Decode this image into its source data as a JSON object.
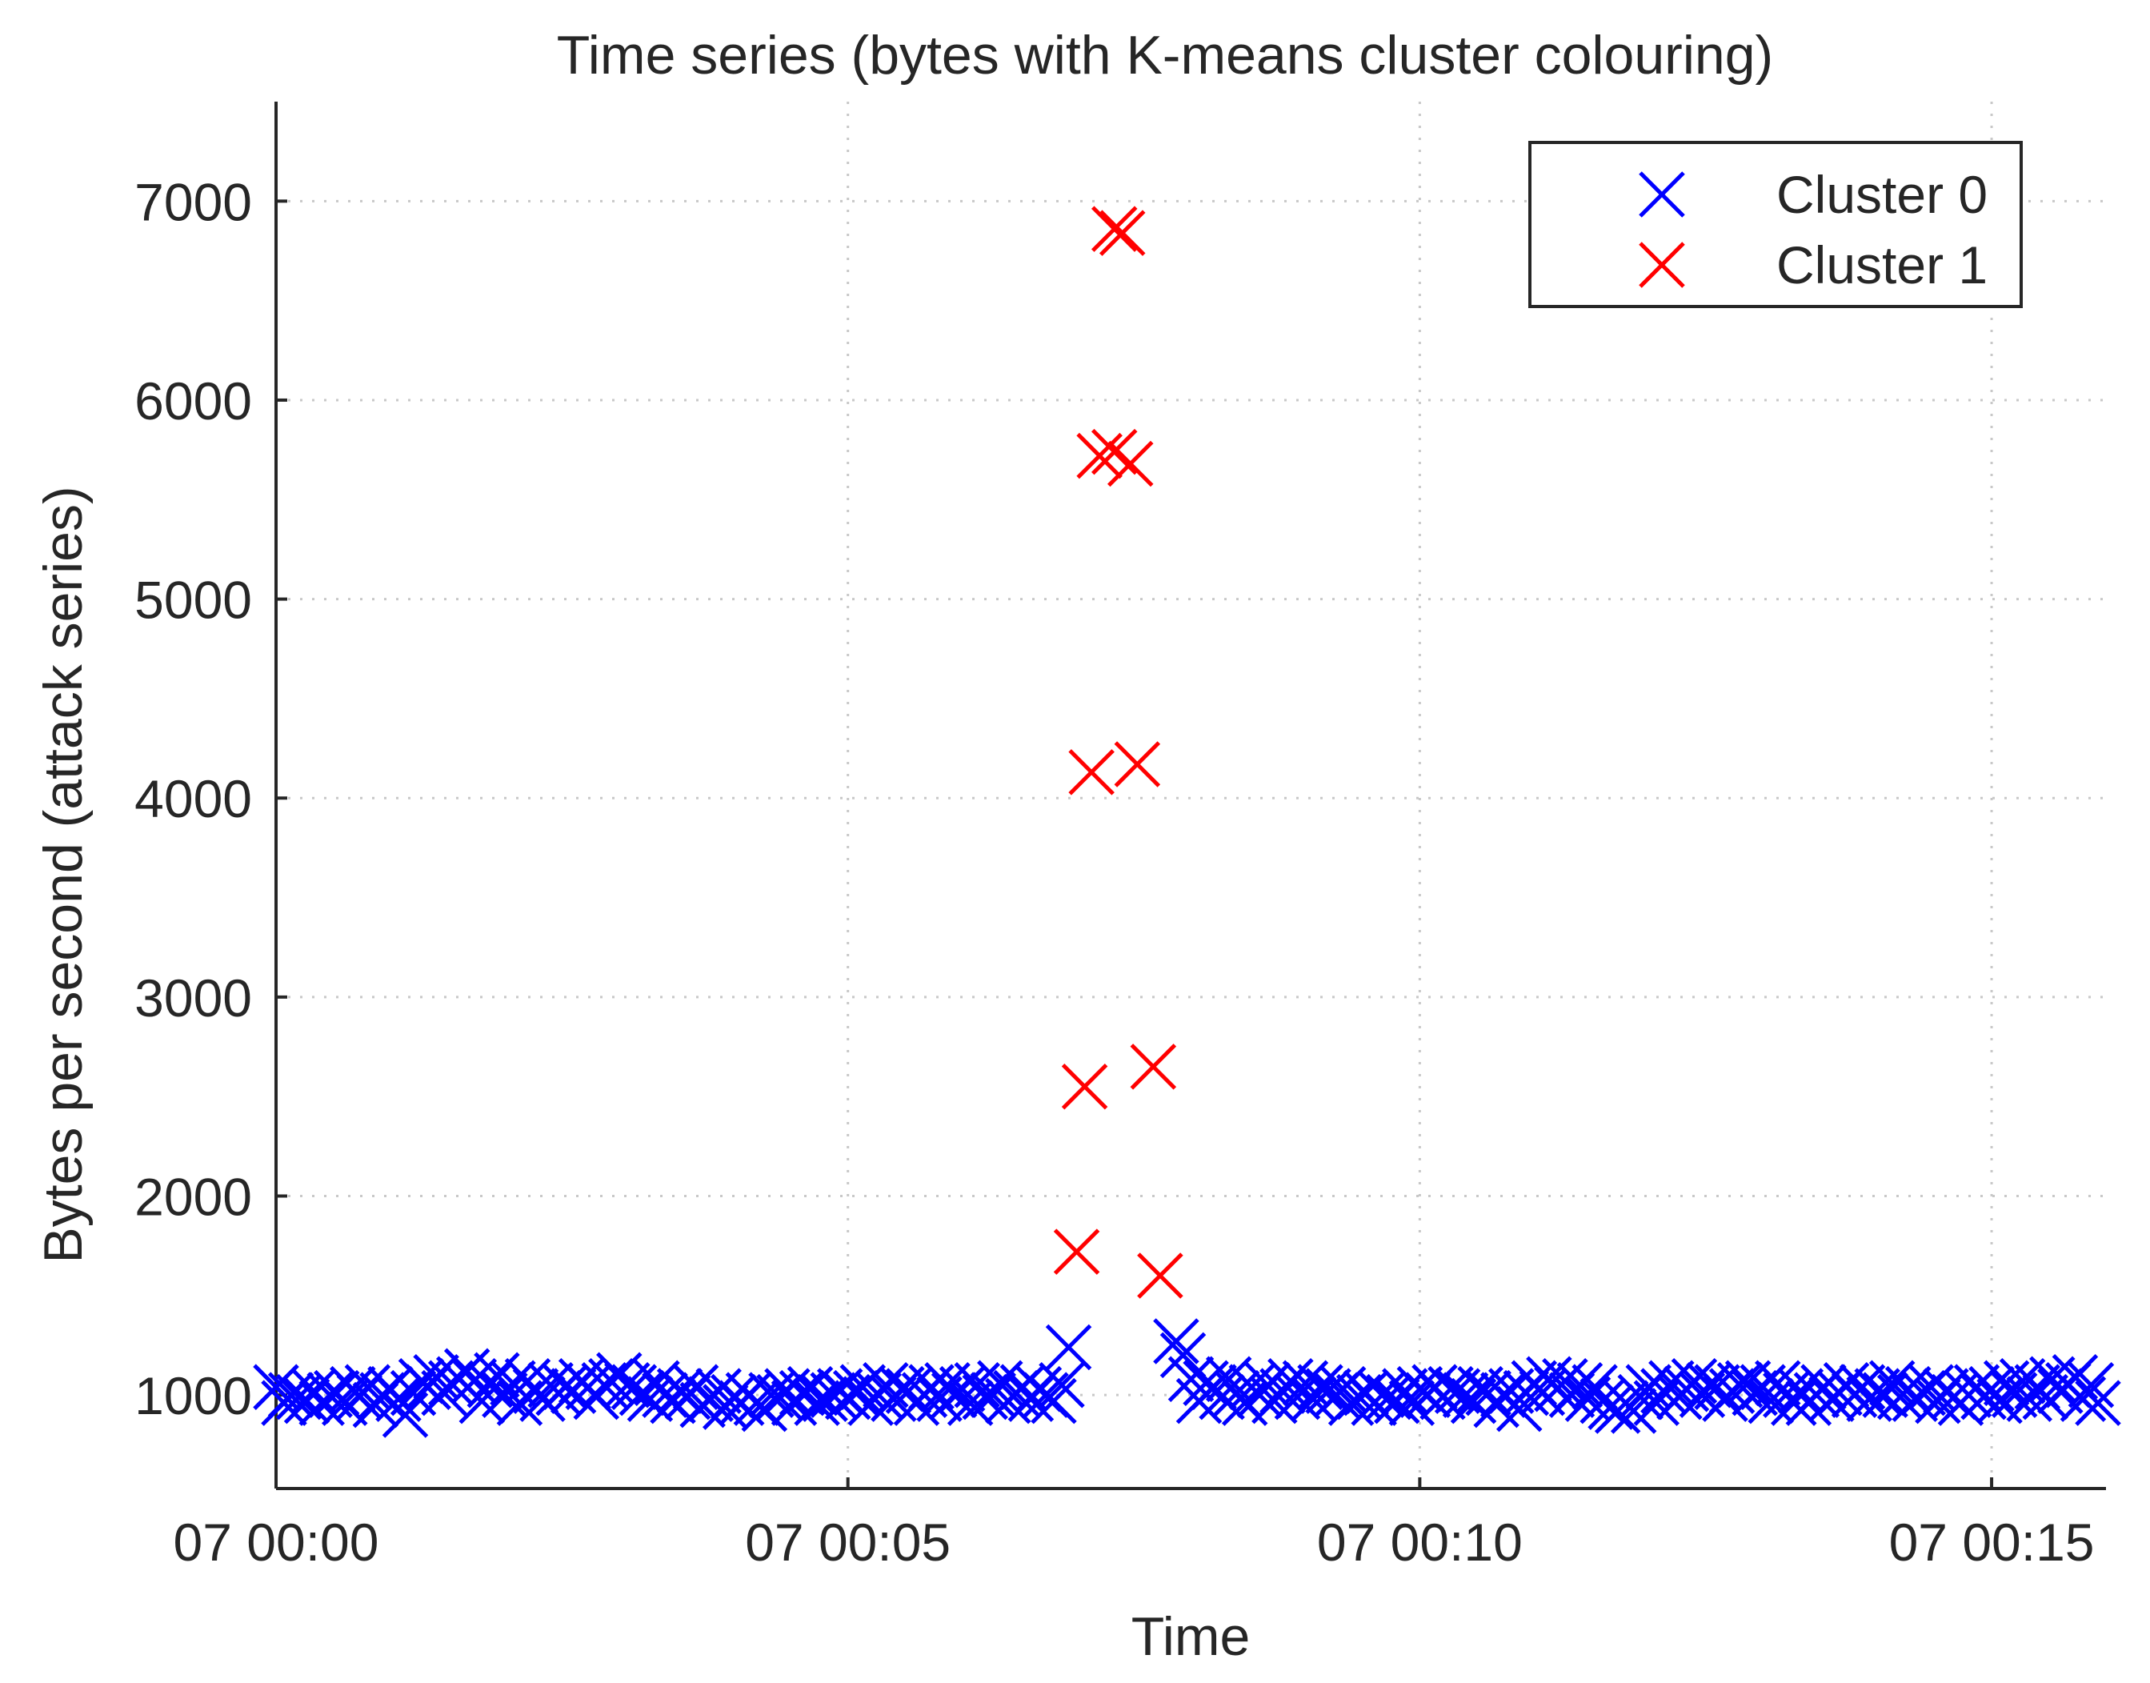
{
  "chart_data": {
    "type": "scatter",
    "title": "Time series (bytes with K-means cluster colouring)",
    "xlabel": "Time",
    "ylabel": "Bytes per second (attack series)",
    "x_unit": "minutes after 07 00:00",
    "xlim": [
      0,
      16
    ],
    "ylim": [
      530,
      7500
    ],
    "yticks": [
      1000,
      2000,
      3000,
      4000,
      5000,
      6000,
      7000
    ],
    "xticks": [
      {
        "x": 0,
        "label": "07 00:00"
      },
      {
        "x": 5,
        "label": "07 00:05"
      },
      {
        "x": 10,
        "label": "07 00:10"
      },
      {
        "x": 15,
        "label": "07 00:15"
      }
    ],
    "grid": true,
    "legend_position": "top-right",
    "marker": "x",
    "series": [
      {
        "name": "Cluster 0",
        "color": "#0000ff",
        "points": [
          [
            0.0,
            1040
          ],
          [
            0.07,
            960
          ],
          [
            0.13,
            1000
          ],
          [
            0.2,
            990
          ],
          [
            0.27,
            970
          ],
          [
            0.33,
            1020
          ],
          [
            0.4,
            960
          ],
          [
            0.47,
            1000
          ],
          [
            0.53,
            1010
          ],
          [
            0.6,
            960
          ],
          [
            0.67,
            1030
          ],
          [
            0.73,
            990
          ],
          [
            0.8,
            1040
          ],
          [
            0.87,
            950
          ],
          [
            0.93,
            1000
          ],
          [
            1.0,
            1030
          ],
          [
            1.07,
            980
          ],
          [
            1.13,
            900
          ],
          [
            1.2,
            1010
          ],
          [
            1.27,
            1070
          ],
          [
            1.33,
            1040
          ],
          [
            1.4,
            1090
          ],
          [
            1.47,
            1010
          ],
          [
            1.53,
            1060
          ],
          [
            1.6,
            1080
          ],
          [
            1.67,
            1120
          ],
          [
            1.73,
            1070
          ],
          [
            1.8,
            970
          ],
          [
            1.87,
            1050
          ],
          [
            1.93,
            1100
          ],
          [
            2.0,
            1000
          ],
          [
            2.07,
            1060
          ],
          [
            2.13,
            960
          ],
          [
            2.2,
            1070
          ],
          [
            2.27,
            1020
          ],
          [
            2.33,
            980
          ],
          [
            2.4,
            1050
          ],
          [
            2.47,
            1010
          ],
          [
            2.53,
            1040
          ],
          [
            2.6,
            1020
          ],
          [
            2.67,
            1070
          ],
          [
            2.73,
            1040
          ],
          [
            2.8,
            990
          ],
          [
            2.87,
            1050
          ],
          [
            2.93,
            1070
          ],
          [
            3.0,
            1100
          ],
          [
            3.07,
            1050
          ],
          [
            3.13,
            1040
          ],
          [
            3.2,
            1010
          ],
          [
            3.27,
            980
          ],
          [
            3.33,
            1060
          ],
          [
            3.4,
            1000
          ],
          [
            3.47,
            970
          ],
          [
            3.53,
            1020
          ],
          [
            3.6,
            990
          ],
          [
            3.67,
            1040
          ],
          [
            3.73,
            950
          ],
          [
            3.8,
            980
          ],
          [
            3.87,
            1020
          ],
          [
            3.93,
            940
          ],
          [
            4.0,
            990
          ],
          [
            4.07,
            960
          ],
          [
            4.13,
            1000
          ],
          [
            4.2,
            960
          ],
          [
            4.27,
            930
          ],
          [
            4.33,
            1000
          ],
          [
            4.4,
            990
          ],
          [
            4.47,
            1020
          ],
          [
            4.53,
            960
          ],
          [
            4.6,
            1010
          ],
          [
            4.67,
            1030
          ],
          [
            4.73,
            960
          ],
          [
            4.8,
            980
          ],
          [
            4.87,
            1000
          ],
          [
            4.93,
            1020
          ],
          [
            5.0,
            990
          ],
          [
            5.07,
            1010
          ],
          [
            5.13,
            1040
          ],
          [
            5.2,
            960
          ],
          [
            5.27,
            1000
          ],
          [
            5.33,
            1050
          ],
          [
            5.4,
            980
          ],
          [
            5.47,
            1030
          ],
          [
            5.53,
            1020
          ],
          [
            5.6,
            960
          ],
          [
            5.67,
            1000
          ],
          [
            5.73,
            1040
          ],
          [
            5.8,
            980
          ],
          [
            5.87,
            1050
          ],
          [
            5.93,
            1000
          ],
          [
            6.0,
            1030
          ],
          [
            6.07,
            960
          ],
          [
            6.13,
            1050
          ],
          [
            6.2,
            990
          ],
          [
            6.27,
            1000
          ],
          [
            6.33,
            1060
          ],
          [
            6.4,
            970
          ],
          [
            6.47,
            1010
          ],
          [
            6.53,
            1040
          ],
          [
            6.6,
            980
          ],
          [
            6.67,
            1030
          ],
          [
            6.73,
            1000
          ],
          [
            6.8,
            970
          ],
          [
            6.87,
            1050
          ],
          [
            6.93,
            1240
          ],
          [
            7.87,
            1270
          ],
          [
            7.93,
            1200
          ],
          [
            8.0,
            1080
          ],
          [
            8.07,
            970
          ],
          [
            8.13,
            1060
          ],
          [
            8.2,
            1040
          ],
          [
            8.27,
            990
          ],
          [
            8.33,
            1080
          ],
          [
            8.4,
            1010
          ],
          [
            8.47,
            960
          ],
          [
            8.53,
            1040
          ],
          [
            8.6,
            1000
          ],
          [
            8.67,
            1050
          ],
          [
            8.73,
            970
          ],
          [
            8.8,
            1020
          ],
          [
            8.87,
            1070
          ],
          [
            8.93,
            990
          ],
          [
            9.0,
            1060
          ],
          [
            9.07,
            980
          ],
          [
            9.13,
            1040
          ],
          [
            9.2,
            1020
          ],
          [
            9.27,
            1000
          ],
          [
            9.33,
            1030
          ],
          [
            9.4,
            960
          ],
          [
            9.47,
            990
          ],
          [
            9.53,
            1010
          ],
          [
            9.6,
            960
          ],
          [
            9.67,
            1000
          ],
          [
            9.73,
            990
          ],
          [
            9.8,
            970
          ],
          [
            9.87,
            1020
          ],
          [
            9.93,
            960
          ],
          [
            10.0,
            1030
          ],
          [
            10.07,
            1000
          ],
          [
            10.13,
            1040
          ],
          [
            10.2,
            990
          ],
          [
            10.27,
            1030
          ],
          [
            10.33,
            1020
          ],
          [
            10.4,
            1000
          ],
          [
            10.47,
            970
          ],
          [
            10.53,
            1030
          ],
          [
            10.6,
            1010
          ],
          [
            10.67,
            950
          ],
          [
            10.73,
            1000
          ],
          [
            10.8,
            1020
          ],
          [
            10.87,
            930
          ],
          [
            10.93,
            1010
          ],
          [
            11.0,
            1060
          ],
          [
            11.07,
            1010
          ],
          [
            11.13,
            1080
          ],
          [
            11.2,
            1030
          ],
          [
            11.27,
            1070
          ],
          [
            11.33,
            1000
          ],
          [
            11.4,
            1050
          ],
          [
            11.47,
            980
          ],
          [
            11.53,
            1040
          ],
          [
            11.6,
            970
          ],
          [
            11.67,
            940
          ],
          [
            11.73,
            920
          ],
          [
            11.8,
            960
          ],
          [
            11.87,
            920
          ],
          [
            11.93,
            990
          ],
          [
            12.0,
            1040
          ],
          [
            12.07,
            960
          ],
          [
            12.13,
            1020
          ],
          [
            12.2,
            1060
          ],
          [
            12.27,
            990
          ],
          [
            12.33,
            1030
          ],
          [
            12.4,
            1070
          ],
          [
            12.47,
            1000
          ],
          [
            12.53,
            1050
          ],
          [
            12.6,
            1040
          ],
          [
            12.67,
            980
          ],
          [
            12.73,
            1020
          ],
          [
            12.8,
            1050
          ],
          [
            12.87,
            1060
          ],
          [
            12.93,
            1010
          ],
          [
            13.0,
            1040
          ],
          [
            13.07,
            970
          ],
          [
            13.13,
            1060
          ],
          [
            13.2,
            1000
          ],
          [
            13.27,
            960
          ],
          [
            13.33,
            1020
          ],
          [
            13.4,
            960
          ],
          [
            13.47,
            1000
          ],
          [
            13.53,
            1040
          ],
          [
            13.6,
            980
          ],
          [
            13.67,
            1010
          ],
          [
            13.73,
            1050
          ],
          [
            13.8,
            1000
          ],
          [
            13.87,
            1040
          ],
          [
            13.93,
            980
          ],
          [
            14.0,
            1020
          ],
          [
            14.07,
            1000
          ],
          [
            14.13,
            1060
          ],
          [
            14.2,
            990
          ],
          [
            14.27,
            1030
          ],
          [
            14.33,
            980
          ],
          [
            14.4,
            1010
          ],
          [
            14.47,
            1040
          ],
          [
            14.53,
            970
          ],
          [
            14.6,
            1020
          ],
          [
            14.67,
            990
          ],
          [
            14.73,
            960
          ],
          [
            14.8,
            1000
          ],
          [
            14.87,
            1040
          ],
          [
            14.93,
            990
          ],
          [
            15.0,
            1030
          ],
          [
            15.07,
            970
          ],
          [
            15.13,
            1060
          ],
          [
            15.2,
            1000
          ],
          [
            15.27,
            1070
          ],
          [
            15.33,
            980
          ],
          [
            15.4,
            1040
          ],
          [
            15.47,
            990
          ],
          [
            15.53,
            1080
          ],
          [
            15.6,
            1020
          ],
          [
            15.67,
            1050
          ],
          [
            15.73,
            1090
          ],
          [
            15.8,
            980
          ],
          [
            15.87,
            1050
          ],
          [
            15.93,
            960
          ]
        ]
      },
      {
        "name": "Cluster 1",
        "color": "#ff0000",
        "points": [
          [
            7.0,
            1720
          ],
          [
            7.07,
            2550
          ],
          [
            7.13,
            4130
          ],
          [
            7.2,
            5720
          ],
          [
            7.33,
            5740
          ],
          [
            7.33,
            6860
          ],
          [
            7.4,
            6840
          ],
          [
            7.47,
            5680
          ],
          [
            7.53,
            4170
          ],
          [
            7.67,
            2650
          ],
          [
            7.73,
            1600
          ]
        ]
      }
    ]
  }
}
